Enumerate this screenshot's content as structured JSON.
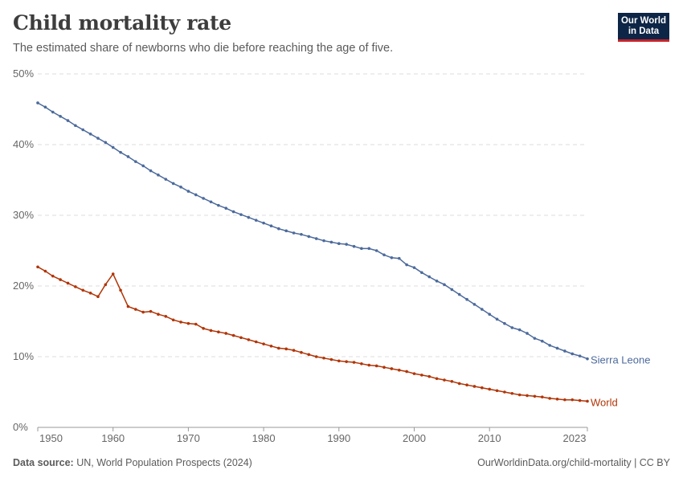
{
  "header": {
    "title": "Child mortality rate",
    "subtitle": "The estimated share of newborns who die before reaching the age of five.",
    "logo_line1": "Our World",
    "logo_line2": "in Data"
  },
  "footer": {
    "source_label": "Data source:",
    "source_text": "UN, World Population Prospects (2024)",
    "link": "OurWorldinData.org/child-mortality | CC BY"
  },
  "colors": {
    "sierra_leone": "#4c6a9c",
    "world": "#b13507",
    "grid": "#dddddd"
  },
  "chart_data": {
    "type": "line",
    "title": "Child mortality rate",
    "xlabel": "",
    "ylabel": "",
    "xlim": [
      1950,
      2023
    ],
    "ylim": [
      0,
      50
    ],
    "y_ticks": [
      "0%",
      "10%",
      "20%",
      "30%",
      "40%",
      "50%"
    ],
    "y_tick_values": [
      0,
      10,
      20,
      30,
      40,
      50
    ],
    "x_ticks": [
      "1950",
      "1960",
      "1970",
      "1980",
      "1990",
      "2000",
      "2010",
      "2023"
    ],
    "x_tick_values": [
      1950,
      1960,
      1970,
      1980,
      1990,
      2000,
      2010,
      2023
    ],
    "grid": "horizontal dashed",
    "legend": "inline labels at line ends",
    "x": [
      1950,
      1951,
      1952,
      1953,
      1954,
      1955,
      1956,
      1957,
      1958,
      1959,
      1960,
      1961,
      1962,
      1963,
      1964,
      1965,
      1966,
      1967,
      1968,
      1969,
      1970,
      1971,
      1972,
      1973,
      1974,
      1975,
      1976,
      1977,
      1978,
      1979,
      1980,
      1981,
      1982,
      1983,
      1984,
      1985,
      1986,
      1987,
      1988,
      1989,
      1990,
      1991,
      1992,
      1993,
      1994,
      1995,
      1996,
      1997,
      1998,
      1999,
      2000,
      2001,
      2002,
      2003,
      2004,
      2005,
      2006,
      2007,
      2008,
      2009,
      2010,
      2011,
      2012,
      2013,
      2014,
      2015,
      2016,
      2017,
      2018,
      2019,
      2020,
      2021,
      2022,
      2023
    ],
    "series": [
      {
        "name": "Sierra Leone",
        "color": "#4c6a9c",
        "values": [
          45.9,
          45.3,
          44.6,
          44.0,
          43.4,
          42.7,
          42.1,
          41.5,
          40.9,
          40.3,
          39.6,
          38.9,
          38.3,
          37.6,
          37.0,
          36.3,
          35.7,
          35.1,
          34.5,
          34.0,
          33.4,
          32.9,
          32.4,
          31.9,
          31.4,
          31.0,
          30.5,
          30.1,
          29.7,
          29.3,
          28.9,
          28.5,
          28.1,
          27.8,
          27.5,
          27.3,
          27.0,
          26.7,
          26.4,
          26.2,
          26.0,
          25.9,
          25.6,
          25.3,
          25.3,
          25.0,
          24.4,
          24.0,
          23.9,
          23.0,
          22.6,
          21.9,
          21.3,
          20.7,
          20.2,
          19.5,
          18.8,
          18.1,
          17.4,
          16.7,
          16.0,
          15.3,
          14.7,
          14.1,
          13.8,
          13.3,
          12.6,
          12.2,
          11.6,
          11.2,
          10.8,
          10.4,
          10.1,
          9.7
        ]
      },
      {
        "name": "World",
        "color": "#b13507",
        "values": [
          22.7,
          22.1,
          21.4,
          20.9,
          20.4,
          19.9,
          19.4,
          19.0,
          18.5,
          20.2,
          21.7,
          19.4,
          17.1,
          16.7,
          16.3,
          16.4,
          16.0,
          15.7,
          15.2,
          14.9,
          14.7,
          14.6,
          14.0,
          13.7,
          13.5,
          13.3,
          13.0,
          12.7,
          12.4,
          12.1,
          11.8,
          11.5,
          11.2,
          11.1,
          10.9,
          10.6,
          10.3,
          10.0,
          9.8,
          9.6,
          9.4,
          9.3,
          9.2,
          9.0,
          8.8,
          8.7,
          8.5,
          8.3,
          8.1,
          7.9,
          7.6,
          7.4,
          7.2,
          6.9,
          6.7,
          6.5,
          6.2,
          6.0,
          5.8,
          5.6,
          5.4,
          5.2,
          5.0,
          4.8,
          4.6,
          4.5,
          4.4,
          4.3,
          4.1,
          4.0,
          3.9,
          3.9,
          3.8,
          3.7
        ]
      }
    ]
  }
}
